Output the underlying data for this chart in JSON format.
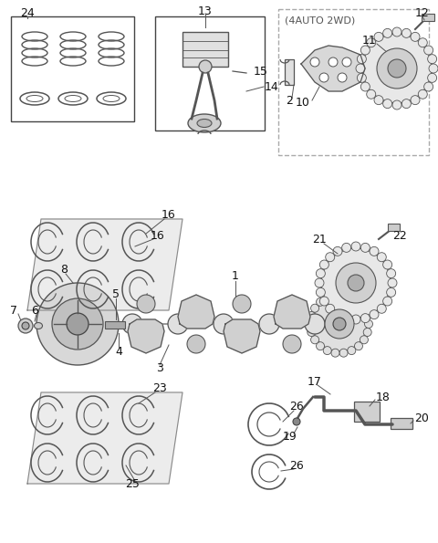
{
  "background_color": "#ffffff",
  "fig_width": 4.8,
  "fig_height": 5.95,
  "dpi": 100
}
